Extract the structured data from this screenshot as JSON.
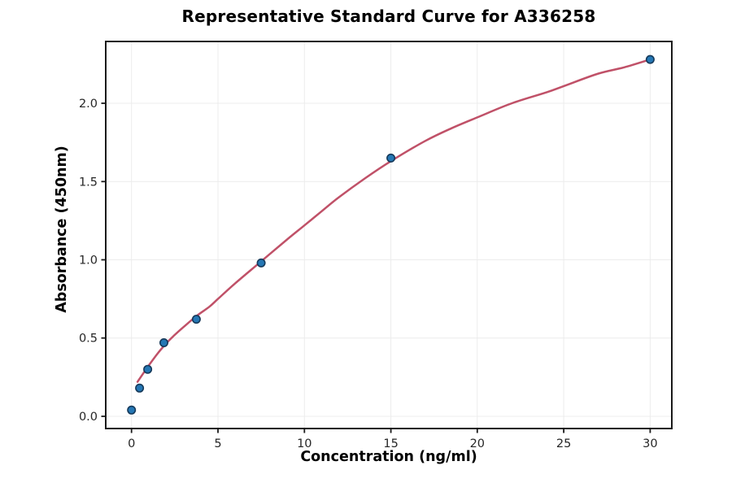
{
  "chart_data": {
    "type": "scatter",
    "title": "Representative Standard Curve for A336258",
    "xlabel": "Concentration (ng/ml)",
    "ylabel": "Absorbance (450nm)",
    "xlim": [
      -1.49,
      31.25
    ],
    "ylim": [
      -0.078,
      2.395
    ],
    "grid": true,
    "legend": "none",
    "xticks": [
      {
        "v": 0,
        "label": "0"
      },
      {
        "v": 5,
        "label": "5"
      },
      {
        "v": 10,
        "label": "10"
      },
      {
        "v": 15,
        "label": "15"
      },
      {
        "v": 20,
        "label": "20"
      },
      {
        "v": 25,
        "label": "25"
      },
      {
        "v": 30,
        "label": "30"
      }
    ],
    "yticks": [
      {
        "v": 0.0,
        "label": "0.0"
      },
      {
        "v": 0.5,
        "label": "0.5"
      },
      {
        "v": 1.0,
        "label": "1.0"
      },
      {
        "v": 1.5,
        "label": "1.5"
      },
      {
        "v": 2.0,
        "label": "2.0"
      }
    ],
    "series": [
      {
        "name": "standard-points",
        "type": "scatter",
        "marker": "circle",
        "fill": "#2577b4",
        "edge": "#15395a",
        "points": [
          [
            0,
            0.04
          ],
          [
            0.469,
            0.18
          ],
          [
            0.938,
            0.3
          ],
          [
            1.875,
            0.47
          ],
          [
            3.75,
            0.62
          ],
          [
            7.5,
            0.98
          ],
          [
            15,
            1.65
          ],
          [
            30,
            2.28
          ]
        ]
      },
      {
        "name": "fitted-curve",
        "type": "line",
        "color": "#c05168",
        "points": [
          [
            0.35,
            0.22
          ],
          [
            0.5,
            0.245
          ],
          [
            0.75,
            0.285
          ],
          [
            1,
            0.325
          ],
          [
            1.5,
            0.4
          ],
          [
            2,
            0.465
          ],
          [
            2.5,
            0.52
          ],
          [
            3,
            0.57
          ],
          [
            3.75,
            0.64
          ],
          [
            4.5,
            0.7
          ],
          [
            5,
            0.75
          ],
          [
            6,
            0.85
          ],
          [
            7.5,
            0.99
          ],
          [
            9,
            1.13
          ],
          [
            10,
            1.22
          ],
          [
            11,
            1.31
          ],
          [
            12,
            1.4
          ],
          [
            13.5,
            1.52
          ],
          [
            15,
            1.63
          ],
          [
            17,
            1.76
          ],
          [
            18.5,
            1.84
          ],
          [
            20,
            1.91
          ],
          [
            22,
            2.0
          ],
          [
            24,
            2.07
          ],
          [
            25,
            2.11
          ],
          [
            27,
            2.19
          ],
          [
            28.5,
            2.23
          ],
          [
            30,
            2.28
          ]
        ]
      }
    ],
    "colors": {
      "background": "#ffffff",
      "grid": "#ececec",
      "spine": "#1a1a1a",
      "tick_label": "#262626",
      "point_fill": "#2577b4",
      "point_edge": "#15395a",
      "curve": "#c05168"
    }
  }
}
